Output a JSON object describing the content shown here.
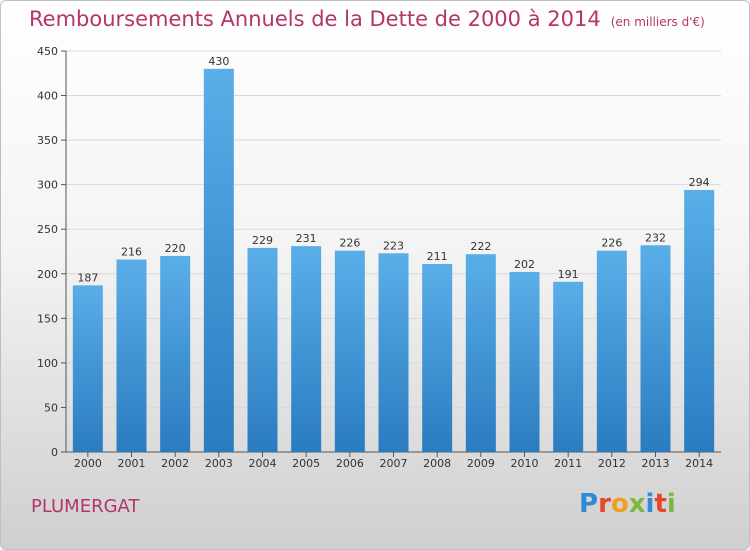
{
  "title": "Remboursements Annuels de la Dette de 2000 à 2014",
  "unit_note": "(en milliers d'€)",
  "location": "PLUMERGAT",
  "logo": {
    "letters": [
      "P",
      "r",
      "o",
      "x",
      "i",
      "t",
      "i"
    ],
    "colors": [
      "#2e8bd6",
      "#e8462a",
      "#f0a020",
      "#7ab840",
      "#2e8bd6",
      "#e8462a",
      "#7ab840"
    ]
  },
  "chart_data": {
    "type": "bar",
    "title": "Remboursements Annuels de la Dette de 2000 à 2014",
    "xlabel": "",
    "ylabel": "",
    "categories": [
      "2000",
      "2001",
      "2002",
      "2003",
      "2004",
      "2005",
      "2006",
      "2007",
      "2008",
      "2009",
      "2010",
      "2011",
      "2012",
      "2013",
      "2014"
    ],
    "values": [
      187,
      216,
      220,
      430,
      229,
      231,
      226,
      223,
      211,
      222,
      202,
      191,
      226,
      232,
      294
    ],
    "ylim": [
      0,
      450
    ],
    "yticks": [
      0,
      50,
      100,
      150,
      200,
      250,
      300,
      350,
      400,
      450
    ],
    "grid": true,
    "bar_color_top": "#5aaee8",
    "bar_color_bottom": "#2a7cc0"
  }
}
